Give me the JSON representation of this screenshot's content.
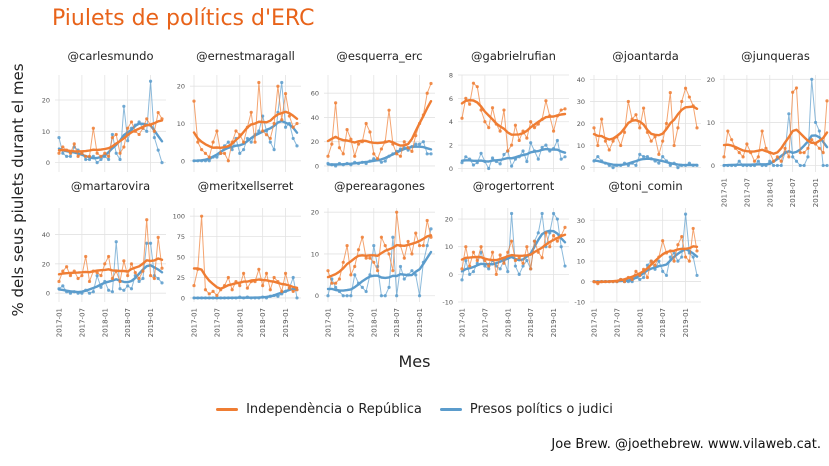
{
  "title": "Piulets de polítics d'ERC",
  "ylabel": "% dels seus piulets durant el mes",
  "xlabel": "Mes",
  "caption": "Joe Brew. @joethebrew. www.vilaweb.cat.",
  "colors": {
    "independencia": "#ef7d33",
    "presos": "#5b9ccc",
    "title": "#e8631a"
  },
  "chart_data": {
    "type": "line",
    "facets": true,
    "x_tick_labels": [
      "2017-01",
      "2017-07",
      "2018-01",
      "2018-07",
      "2019-01"
    ],
    "months_per_series": 28,
    "series_names": [
      "Independència o República",
      "Presos polítics o judici"
    ],
    "legend_position": "bottom",
    "grid": true,
    "panels": [
      {
        "name": "@carlesmundo",
        "ylim": [
          -3,
          28
        ],
        "yticks": [
          0,
          10,
          20
        ],
        "independencia": [
          3,
          5,
          4,
          3,
          6,
          2,
          3,
          2,
          2,
          11,
          3,
          2,
          3,
          2,
          8,
          9,
          3,
          5,
          11,
          13,
          10,
          9,
          11,
          14,
          12,
          10,
          16,
          14
        ],
        "presos": [
          8,
          3,
          2,
          2,
          5,
          4,
          3,
          1,
          1,
          2,
          0,
          1,
          2,
          1,
          9,
          3,
          1,
          18,
          7,
          11,
          12,
          13,
          11,
          10,
          26,
          8,
          4,
          0
        ]
      },
      {
        "name": "@ernestmaragall",
        "ylim": [
          -3,
          23
        ],
        "yticks": [
          0,
          10,
          20
        ],
        "independencia": [
          16,
          5,
          3,
          2,
          1,
          5,
          8,
          2,
          2,
          0,
          5,
          8,
          7,
          5,
          9,
          13,
          5,
          21,
          8,
          7,
          6,
          10,
          20,
          11,
          18,
          12,
          9,
          10
        ],
        "presos": [
          0,
          0,
          0,
          0,
          0,
          1,
          1,
          2,
          4,
          5,
          3,
          6,
          2,
          3,
          6,
          5,
          7,
          8,
          12,
          8,
          5,
          3,
          13,
          21,
          9,
          10,
          6,
          4
        ]
      },
      {
        "name": "@esquerra_erc",
        "ylim": [
          -5,
          75
        ],
        "yticks": [
          0,
          20,
          40,
          60
        ],
        "independencia": [
          8,
          18,
          52,
          15,
          10,
          30,
          22,
          8,
          18,
          20,
          35,
          28,
          10,
          6,
          14,
          20,
          46,
          18,
          10,
          8,
          20,
          15,
          12,
          25,
          35,
          42,
          60,
          68
        ],
        "presos": [
          2,
          1,
          0,
          2,
          1,
          2,
          1,
          3,
          2,
          3,
          2,
          4,
          6,
          5,
          3,
          4,
          8,
          10,
          12,
          14,
          15,
          13,
          16,
          18,
          18,
          20,
          10,
          10
        ]
      },
      {
        "name": "@gabrielrufian",
        "ylim": [
          -0.3,
          8
        ],
        "yticks": [
          0,
          2,
          4,
          6,
          8
        ],
        "independencia": [
          4.3,
          6,
          5.5,
          7.3,
          7,
          5,
          4,
          3.5,
          5.2,
          3.8,
          3.2,
          5,
          1.5,
          2,
          3.7,
          2.4,
          3.2,
          2.6,
          4,
          3.5,
          3.8,
          4.2,
          5.8,
          4.5,
          3.2,
          4.5,
          5,
          5.1
        ],
        "presos": [
          0.5,
          1,
          0.8,
          0.3,
          0.5,
          1.3,
          0.6,
          0,
          0.9,
          0.6,
          0.4,
          1.2,
          1.5,
          0.2,
          0.8,
          1,
          1.5,
          0.6,
          2.2,
          1.5,
          0.8,
          1.8,
          2,
          1.5,
          1.7,
          2.4,
          0.8,
          1
        ]
      },
      {
        "name": "@joantarda",
        "ylim": [
          -2,
          42
        ],
        "yticks": [
          0,
          10,
          20,
          30,
          40
        ],
        "independencia": [
          18,
          10,
          22,
          12,
          8,
          12,
          14,
          10,
          16,
          30,
          22,
          24,
          18,
          27,
          16,
          12,
          14,
          6,
          12,
          20,
          34,
          10,
          18,
          30,
          36,
          32,
          28,
          18
        ],
        "presos": [
          3,
          5,
          3,
          2,
          1,
          0,
          1,
          1,
          2,
          1,
          2,
          1,
          6,
          5,
          5,
          4,
          3,
          2,
          5,
          3,
          1,
          2,
          0,
          1,
          1,
          2,
          1,
          1
        ]
      },
      {
        "name": "@junqueras",
        "ylim": [
          -1.5,
          21
        ],
        "yticks": [
          0,
          10,
          20
        ],
        "independencia": [
          2,
          8,
          6,
          4,
          3,
          2,
          5,
          3,
          1,
          2,
          8,
          4,
          3,
          1,
          2,
          1,
          4,
          2,
          17,
          18,
          3,
          3,
          4,
          6,
          5,
          4,
          3,
          15
        ],
        "presos": [
          0,
          0,
          0,
          0,
          1,
          0,
          0,
          0,
          0,
          1,
          0,
          0,
          1,
          0,
          0,
          0,
          3,
          12,
          2,
          1,
          0,
          0,
          2,
          20,
          10,
          8,
          0,
          0
        ]
      },
      {
        "name": "@martarovira",
        "ylim": [
          -6,
          58
        ],
        "yticks": [
          0,
          20,
          40
        ],
        "independencia": [
          8,
          15,
          18,
          12,
          15,
          10,
          12,
          25,
          8,
          15,
          14,
          12,
          20,
          25,
          10,
          15,
          8,
          22,
          12,
          20,
          14,
          10,
          15,
          50,
          12,
          10,
          38,
          17
        ],
        "presos": [
          3,
          5,
          1,
          0,
          1,
          0,
          0,
          2,
          0,
          1,
          12,
          4,
          8,
          2,
          1,
          35,
          3,
          2,
          5,
          3,
          12,
          8,
          10,
          34,
          34,
          12,
          10,
          7
        ]
      },
      {
        "name": "@meritxellserret",
        "ylim": [
          -5,
          110
        ],
        "yticks": [
          0,
          25,
          50,
          75,
          100
        ],
        "independencia": [
          15,
          35,
          100,
          10,
          5,
          8,
          3,
          10,
          15,
          25,
          10,
          20,
          15,
          30,
          12,
          20,
          20,
          35,
          15,
          30,
          10,
          25,
          20,
          8,
          30,
          12,
          8,
          10
        ],
        "presos": [
          0,
          0,
          0,
          0,
          0,
          0,
          0,
          0,
          0,
          0,
          0,
          0,
          1,
          0,
          1,
          0,
          0,
          0,
          1,
          0,
          2,
          3,
          2,
          5,
          8,
          12,
          25,
          0
        ]
      },
      {
        "name": "@perearagones",
        "ylim": [
          -1.5,
          21
        ],
        "yticks": [
          0,
          10,
          20
        ],
        "independencia": [
          6,
          3,
          3,
          4,
          8,
          12,
          5,
          7,
          11,
          14,
          9,
          9,
          8,
          6,
          14,
          12,
          10,
          6,
          20,
          12,
          9,
          13,
          10,
          15,
          12,
          12,
          18,
          14
        ],
        "presos": [
          0,
          4,
          2,
          1,
          0,
          0,
          0,
          5,
          3,
          2,
          1,
          5,
          12,
          7,
          0,
          0,
          2,
          14,
          0,
          7,
          4,
          5,
          6,
          5,
          0,
          8,
          12,
          16
        ]
      },
      {
        "name": "@rogertorrent",
        "ylim": [
          -10,
          24
        ],
        "yticks": [
          -10,
          0,
          10,
          20
        ],
        "independencia": [
          2,
          10,
          3,
          8,
          5,
          10,
          5,
          3,
          8,
          0,
          7,
          4,
          8,
          12,
          5,
          6,
          4,
          10,
          2,
          12,
          8,
          6,
          15,
          10,
          14,
          12,
          14,
          17
        ],
        "presos": [
          -2,
          5,
          0,
          1,
          4,
          8,
          3,
          2,
          5,
          3,
          2,
          5,
          1,
          22,
          3,
          0,
          3,
          5,
          2,
          12,
          15,
          22,
          10,
          15,
          22,
          20,
          10,
          3
        ]
      },
      {
        "name": "@toni_comin",
        "ylim": [
          -10,
          36
        ],
        "yticks": [
          -10,
          0,
          10,
          20,
          30
        ],
        "independencia": [
          0,
          -1,
          0,
          0,
          0,
          0,
          0,
          1,
          0,
          2,
          1,
          5,
          3,
          6,
          2,
          10,
          8,
          12,
          20,
          14,
          15,
          10,
          18,
          22,
          12,
          10,
          26,
          15
        ],
        "presos": [
          0,
          0,
          0,
          0,
          0,
          0,
          0,
          1,
          0,
          0,
          0,
          2,
          1,
          2,
          8,
          10,
          6,
          10,
          5,
          3,
          12,
          14,
          10,
          12,
          33,
          14,
          12,
          3
        ]
      }
    ]
  }
}
